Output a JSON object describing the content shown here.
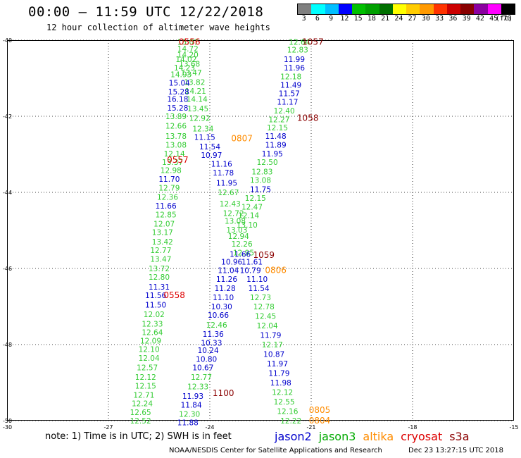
{
  "title": "00:00 – 11:59 UTC 12/22/2018",
  "subtitle": "12 hour collection of altimeter wave heights",
  "colorbar": {
    "labels": [
      "3",
      "6",
      "9",
      "12",
      "15",
      "18",
      "21",
      "24",
      "27",
      "30",
      "33",
      "36",
      "39",
      "42",
      "45",
      "70"
    ],
    "unit": "(ft)",
    "colors": [
      "#7f7f7f",
      "#00ffff",
      "#00bfff",
      "#0000ff",
      "#00c000",
      "#00a000",
      "#007000",
      "#ffff00",
      "#ffcc00",
      "#ff9900",
      "#ff3300",
      "#cc0000",
      "#880000",
      "#8b00a0",
      "#ff00ff",
      "#000000"
    ]
  },
  "note": "note: 1) Time is in UTC; 2) SWH is in feet",
  "legend": [
    {
      "label": "jason2",
      "color": "#0000cc"
    },
    {
      "label": "jason3",
      "color": "#00aa00"
    },
    {
      "label": "altika",
      "color": "#ff8c00"
    },
    {
      "label": "cryosat",
      "color": "#dd0000"
    },
    {
      "label": "s3a",
      "color": "#8b0000"
    }
  ],
  "credit": "NOAA/NESDIS Center for Satellite Applications and Research",
  "timestamp": "Dec 23 13:27:15 UTC 2018",
  "chart_data": {
    "type": "scatter",
    "xlim": [
      -30,
      -15
    ],
    "ylim": [
      -50,
      -40
    ],
    "x_ticks": [
      -27,
      -24,
      -21,
      -18,
      -15
    ],
    "y_ticks": [
      -40,
      -42,
      -44,
      -46,
      -48,
      -50
    ],
    "corner_label": "-30",
    "grid": true,
    "colors": {
      "j3": "#33cc33",
      "j2": "#0000cc",
      "al": "#ff8c00",
      "cr": "#dd0000",
      "s3": "#8b0000"
    },
    "points": [
      {
        "lon": -24.65,
        "lat": -40.05,
        "v": "15.07",
        "s": "j3"
      },
      {
        "lon": -24.65,
        "lat": -40.22,
        "v": "14.72",
        "s": "j3"
      },
      {
        "lon": -24.65,
        "lat": -40.38,
        "v": "14.20",
        "s": "j3"
      },
      {
        "lon": -24.7,
        "lat": -40.5,
        "v": "14.02",
        "s": "j3"
      },
      {
        "lon": -24.6,
        "lat": -40.62,
        "v": "13.68",
        "s": "j3"
      },
      {
        "lon": -24.75,
        "lat": -40.72,
        "v": "14.23",
        "s": "j3"
      },
      {
        "lon": -24.55,
        "lat": -40.85,
        "v": "13.47",
        "s": "j3"
      },
      {
        "lon": -24.85,
        "lat": -40.9,
        "v": "14.93",
        "s": "j3"
      },
      {
        "lon": -24.45,
        "lat": -41.1,
        "v": "13.82",
        "s": "j3"
      },
      {
        "lon": -24.9,
        "lat": -41.12,
        "v": "15.04",
        "s": "j2"
      },
      {
        "lon": -24.42,
        "lat": -41.33,
        "v": "14.21",
        "s": "j3"
      },
      {
        "lon": -24.92,
        "lat": -41.35,
        "v": "15.28",
        "s": "j2"
      },
      {
        "lon": -24.38,
        "lat": -41.55,
        "v": "14.14",
        "s": "j3"
      },
      {
        "lon": -24.95,
        "lat": -41.55,
        "v": "16.18",
        "s": "j2"
      },
      {
        "lon": -24.95,
        "lat": -41.78,
        "v": "15.28",
        "s": "j2"
      },
      {
        "lon": -24.35,
        "lat": -41.8,
        "v": "13.45",
        "s": "j3"
      },
      {
        "lon": -25.0,
        "lat": -42.0,
        "v": "13.89",
        "s": "j3"
      },
      {
        "lon": -24.3,
        "lat": -42.05,
        "v": "12.92",
        "s": "j3"
      },
      {
        "lon": -25.0,
        "lat": -42.25,
        "v": "12.66",
        "s": "j3"
      },
      {
        "lon": -24.2,
        "lat": -42.32,
        "v": "12.34",
        "s": "j3"
      },
      {
        "lon": -25.0,
        "lat": -42.52,
        "v": "13.78",
        "s": "j3"
      },
      {
        "lon": -24.15,
        "lat": -42.55,
        "v": "11.15",
        "s": "j2"
      },
      {
        "lon": -25.0,
        "lat": -42.75,
        "v": "13.08",
        "s": "j3"
      },
      {
        "lon": -24.0,
        "lat": -42.8,
        "v": "11.54",
        "s": "j2"
      },
      {
        "lon": -25.05,
        "lat": -42.98,
        "v": "12.14",
        "s": "j3"
      },
      {
        "lon": -23.95,
        "lat": -43.02,
        "v": "10.97",
        "s": "j2"
      },
      {
        "lon": -25.1,
        "lat": -43.2,
        "v": "13.37",
        "s": "j3"
      },
      {
        "lon": -23.65,
        "lat": -43.25,
        "v": "11.16",
        "s": "j2"
      },
      {
        "lon": -25.15,
        "lat": -43.42,
        "v": "12.98",
        "s": "j3"
      },
      {
        "lon": -23.6,
        "lat": -43.48,
        "v": "11.78",
        "s": "j2"
      },
      {
        "lon": -25.2,
        "lat": -43.65,
        "v": "11.70",
        "s": "j2"
      },
      {
        "lon": -23.5,
        "lat": -43.75,
        "v": "11.95",
        "s": "j2"
      },
      {
        "lon": -25.2,
        "lat": -43.88,
        "v": "12.79",
        "s": "j3"
      },
      {
        "lon": -23.45,
        "lat": -44.0,
        "v": "12.67",
        "s": "j3"
      },
      {
        "lon": -25.25,
        "lat": -44.12,
        "v": "12.36",
        "s": "j3"
      },
      {
        "lon": -23.4,
        "lat": -44.3,
        "v": "12.43",
        "s": "j3"
      },
      {
        "lon": -25.3,
        "lat": -44.35,
        "v": "11.66",
        "s": "j2"
      },
      {
        "lon": -23.3,
        "lat": -44.55,
        "v": "12.72",
        "s": "j3"
      },
      {
        "lon": -25.3,
        "lat": -44.58,
        "v": "12.85",
        "s": "j3"
      },
      {
        "lon": -23.25,
        "lat": -44.75,
        "v": "13.08",
        "s": "j3"
      },
      {
        "lon": -25.35,
        "lat": -44.82,
        "v": "12.07",
        "s": "j3"
      },
      {
        "lon": -23.2,
        "lat": -44.98,
        "v": "13.03",
        "s": "j3"
      },
      {
        "lon": -25.4,
        "lat": -45.05,
        "v": "13.17",
        "s": "j3"
      },
      {
        "lon": -23.15,
        "lat": -45.15,
        "v": "12.94",
        "s": "j3"
      },
      {
        "lon": -25.4,
        "lat": -45.3,
        "v": "13.42",
        "s": "j3"
      },
      {
        "lon": -23.05,
        "lat": -45.35,
        "v": "12.26",
        "s": "j3"
      },
      {
        "lon": -25.45,
        "lat": -45.52,
        "v": "12.77",
        "s": "j3"
      },
      {
        "lon": -23.0,
        "lat": -45.58,
        "v": "12.95",
        "s": "j3"
      },
      {
        "lon": -23.1,
        "lat": -45.62,
        "v": "11.66",
        "s": "j2"
      },
      {
        "lon": -25.45,
        "lat": -45.75,
        "v": "13.47",
        "s": "j3"
      },
      {
        "lon": -23.35,
        "lat": -45.82,
        "v": "10.96",
        "s": "j2"
      },
      {
        "lon": -22.75,
        "lat": -45.82,
        "v": "11.61",
        "s": "j2"
      },
      {
        "lon": -25.5,
        "lat": -46.0,
        "v": "13.72",
        "s": "j3"
      },
      {
        "lon": -23.45,
        "lat": -46.05,
        "v": "11.04",
        "s": "j2"
      },
      {
        "lon": -22.8,
        "lat": -46.05,
        "v": "10.79",
        "s": "j2"
      },
      {
        "lon": -25.5,
        "lat": -46.22,
        "v": "12.80",
        "s": "j3"
      },
      {
        "lon": -23.5,
        "lat": -46.28,
        "v": "11.26",
        "s": "j2"
      },
      {
        "lon": -22.6,
        "lat": -46.28,
        "v": "11.10",
        "s": "j2"
      },
      {
        "lon": -25.5,
        "lat": -46.48,
        "v": "11.31",
        "s": "j2"
      },
      {
        "lon": -23.55,
        "lat": -46.52,
        "v": "11.28",
        "s": "j2"
      },
      {
        "lon": -22.55,
        "lat": -46.52,
        "v": "11.54",
        "s": "j2"
      },
      {
        "lon": -25.6,
        "lat": -46.7,
        "v": "11.56",
        "s": "j2"
      },
      {
        "lon": -23.6,
        "lat": -46.76,
        "v": "11.10",
        "s": "j2"
      },
      {
        "lon": -22.5,
        "lat": -46.76,
        "v": "12.73",
        "s": "j3"
      },
      {
        "lon": -25.6,
        "lat": -46.95,
        "v": "11.50",
        "s": "j2"
      },
      {
        "lon": -23.65,
        "lat": -47.0,
        "v": "10.30",
        "s": "j2"
      },
      {
        "lon": -22.4,
        "lat": -47.0,
        "v": "12.78",
        "s": "j3"
      },
      {
        "lon": -25.65,
        "lat": -47.2,
        "v": "12.02",
        "s": "j3"
      },
      {
        "lon": -23.75,
        "lat": -47.22,
        "v": "10.66",
        "s": "j2"
      },
      {
        "lon": -22.35,
        "lat": -47.25,
        "v": "12.45",
        "s": "j3"
      },
      {
        "lon": -25.7,
        "lat": -47.45,
        "v": "12.33",
        "s": "j3"
      },
      {
        "lon": -23.8,
        "lat": -47.48,
        "v": "12.46",
        "s": "j3"
      },
      {
        "lon": -22.3,
        "lat": -47.5,
        "v": "12.04",
        "s": "j3"
      },
      {
        "lon": -25.7,
        "lat": -47.68,
        "v": "12.64",
        "s": "j3"
      },
      {
        "lon": -23.9,
        "lat": -47.72,
        "v": "11.36",
        "s": "j2"
      },
      {
        "lon": -22.2,
        "lat": -47.75,
        "v": "11.79",
        "s": "j2"
      },
      {
        "lon": -25.75,
        "lat": -47.9,
        "v": "12.09",
        "s": "j3"
      },
      {
        "lon": -23.95,
        "lat": -47.95,
        "v": "10.33",
        "s": "j2"
      },
      {
        "lon": -22.15,
        "lat": -48.0,
        "v": "12.17",
        "s": "j3"
      },
      {
        "lon": -25.8,
        "lat": -48.12,
        "v": "12.10",
        "s": "j3"
      },
      {
        "lon": -24.05,
        "lat": -48.15,
        "v": "10.24",
        "s": "j2"
      },
      {
        "lon": -25.8,
        "lat": -48.35,
        "v": "12.04",
        "s": "j3"
      },
      {
        "lon": -22.1,
        "lat": -48.25,
        "v": "10.87",
        "s": "j2"
      },
      {
        "lon": -24.1,
        "lat": -48.38,
        "v": "10.80",
        "s": "j2"
      },
      {
        "lon": -25.85,
        "lat": -48.6,
        "v": "12.57",
        "s": "j3"
      },
      {
        "lon": -22.0,
        "lat": -48.5,
        "v": "11.97",
        "s": "j2"
      },
      {
        "lon": -24.2,
        "lat": -48.6,
        "v": "10.67",
        "s": "j2"
      },
      {
        "lon": -25.9,
        "lat": -48.85,
        "v": "12.12",
        "s": "j3"
      },
      {
        "lon": -21.95,
        "lat": -48.75,
        "v": "11.79",
        "s": "j2"
      },
      {
        "lon": -24.25,
        "lat": -48.85,
        "v": "12.77",
        "s": "j3"
      },
      {
        "lon": -25.9,
        "lat": -49.08,
        "v": "12.15",
        "s": "j3"
      },
      {
        "lon": -21.9,
        "lat": -49.0,
        "v": "11.98",
        "s": "j2"
      },
      {
        "lon": -24.35,
        "lat": -49.1,
        "v": "12.33",
        "s": "j3"
      },
      {
        "lon": -25.95,
        "lat": -49.32,
        "v": "12.71",
        "s": "j3"
      },
      {
        "lon": -21.85,
        "lat": -49.25,
        "v": "12.12",
        "s": "j3"
      },
      {
        "lon": -24.5,
        "lat": -49.35,
        "v": "11.93",
        "s": "j2"
      },
      {
        "lon": -26.0,
        "lat": -49.55,
        "v": "12.24",
        "s": "j3"
      },
      {
        "lon": -21.8,
        "lat": -49.5,
        "v": "12.55",
        "s": "j3"
      },
      {
        "lon": -24.55,
        "lat": -49.58,
        "v": "11.84",
        "s": "j2"
      },
      {
        "lon": -26.05,
        "lat": -49.78,
        "v": "12.65",
        "s": "j3"
      },
      {
        "lon": -21.7,
        "lat": -49.75,
        "v": "12.16",
        "s": "j3"
      },
      {
        "lon": -24.6,
        "lat": -49.82,
        "v": "12.30",
        "s": "j3"
      },
      {
        "lon": -26.05,
        "lat": -50.0,
        "v": "12.52",
        "s": "j3"
      },
      {
        "lon": -21.6,
        "lat": -50.0,
        "v": "12.22",
        "s": "j3"
      },
      {
        "lon": -24.65,
        "lat": -50.05,
        "v": "11.88",
        "s": "j2"
      },
      {
        "lon": -21.35,
        "lat": -40.05,
        "v": "12.64",
        "s": "j3"
      },
      {
        "lon": -21.4,
        "lat": -40.25,
        "v": "12.83",
        "s": "j3"
      },
      {
        "lon": -21.5,
        "lat": -40.5,
        "v": "11.99",
        "s": "j2"
      },
      {
        "lon": -21.5,
        "lat": -40.72,
        "v": "11.96",
        "s": "j2"
      },
      {
        "lon": -21.6,
        "lat": -40.95,
        "v": "12.18",
        "s": "j3"
      },
      {
        "lon": -21.6,
        "lat": -41.18,
        "v": "11.49",
        "s": "j2"
      },
      {
        "lon": -21.65,
        "lat": -41.4,
        "v": "11.57",
        "s": "j2"
      },
      {
        "lon": -21.7,
        "lat": -41.62,
        "v": "11.17",
        "s": "j2"
      },
      {
        "lon": -21.8,
        "lat": -41.85,
        "v": "12.40",
        "s": "j3"
      },
      {
        "lon": -21.95,
        "lat": -42.08,
        "v": "12.27",
        "s": "j3"
      },
      {
        "lon": -22.0,
        "lat": -42.3,
        "v": "12.15",
        "s": "j3"
      },
      {
        "lon": -22.05,
        "lat": -42.52,
        "v": "11.48",
        "s": "j2"
      },
      {
        "lon": -22.05,
        "lat": -42.75,
        "v": "11.89",
        "s": "j2"
      },
      {
        "lon": -22.15,
        "lat": -42.98,
        "v": "11.95",
        "s": "j2"
      },
      {
        "lon": -22.3,
        "lat": -43.2,
        "v": "12.50",
        "s": "j3"
      },
      {
        "lon": -22.45,
        "lat": -43.45,
        "v": "12.83",
        "s": "j3"
      },
      {
        "lon": -22.5,
        "lat": -43.68,
        "v": "13.08",
        "s": "j3"
      },
      {
        "lon": -22.5,
        "lat": -43.92,
        "v": "11.75",
        "s": "j2"
      },
      {
        "lon": -22.65,
        "lat": -44.15,
        "v": "12.15",
        "s": "j3"
      },
      {
        "lon": -22.75,
        "lat": -44.38,
        "v": "12.47",
        "s": "j3"
      },
      {
        "lon": -22.85,
        "lat": -44.6,
        "v": "12.14",
        "s": "j3"
      },
      {
        "lon": -22.9,
        "lat": -44.85,
        "v": "13.10",
        "s": "j3"
      },
      {
        "lon": -24.6,
        "lat": -40.05,
        "v": "0556",
        "s": "cr"
      },
      {
        "lon": -20.95,
        "lat": -40.05,
        "v": "1057",
        "s": "s3"
      },
      {
        "lon": -21.1,
        "lat": -42.05,
        "v": "1058",
        "s": "s3"
      },
      {
        "lon": -23.05,
        "lat": -42.58,
        "v": "0807",
        "s": "al"
      },
      {
        "lon": -24.95,
        "lat": -43.15,
        "v": "0557",
        "s": "cr"
      },
      {
        "lon": -22.4,
        "lat": -45.65,
        "v": "1059",
        "s": "s3"
      },
      {
        "lon": -22.05,
        "lat": -46.05,
        "v": "0806",
        "s": "al"
      },
      {
        "lon": -25.05,
        "lat": -46.7,
        "v": "0558",
        "s": "cr"
      },
      {
        "lon": -23.6,
        "lat": -49.28,
        "v": "1100",
        "s": "s3"
      },
      {
        "lon": -20.75,
        "lat": -49.72,
        "v": "0805",
        "s": "al"
      },
      {
        "lon": -20.75,
        "lat": -50.0,
        "v": "0804",
        "s": "al"
      }
    ]
  }
}
